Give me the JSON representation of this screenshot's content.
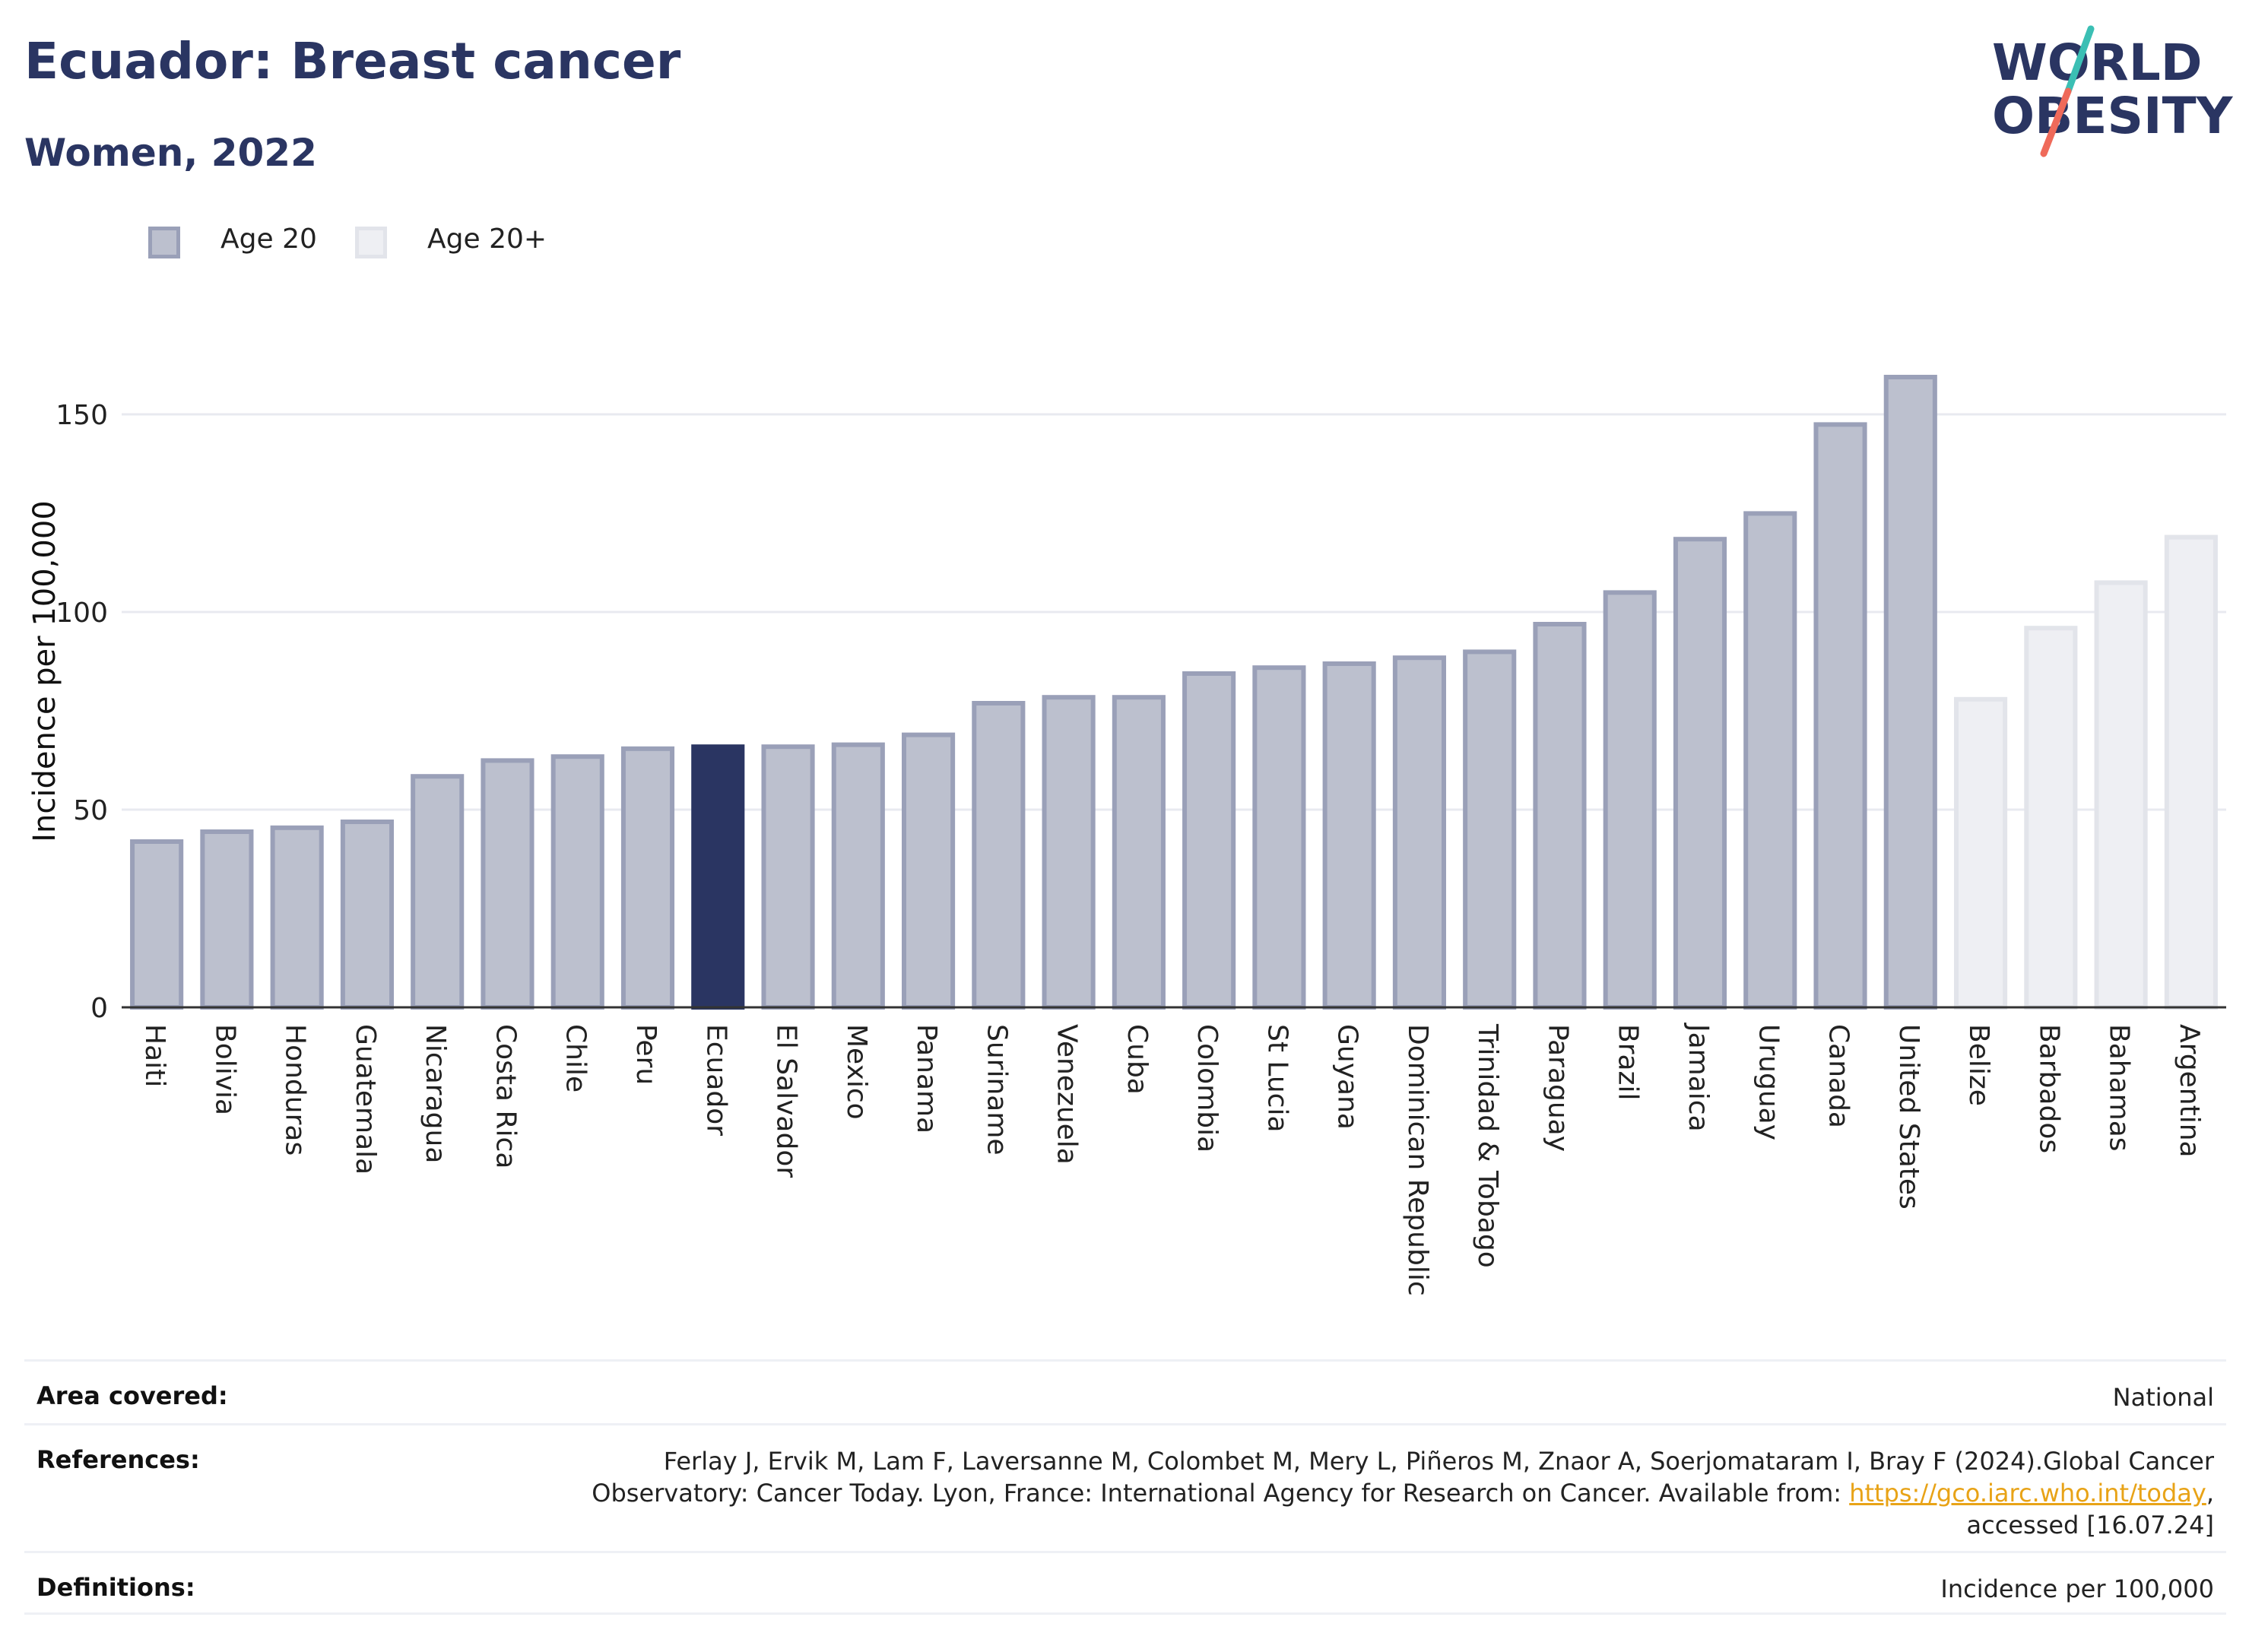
{
  "header": {
    "title": "Ecuador: Breast cancer",
    "subtitle": "Women, 2022"
  },
  "logo": {
    "line1": "WORLD",
    "line2": "OBESITY"
  },
  "colors": {
    "age20_fill": "#bcc0ce",
    "age20_stroke": "#9aa0b8",
    "age20plus_fill": "#eeeff3",
    "age20plus_stroke": "#e2e4ea",
    "highlight": "#2a3562",
    "logo_text": "#2a3562",
    "logo_teal": "#3bbfb4",
    "logo_coral": "#ef6a5a",
    "link": "#e8a317"
  },
  "legend": {
    "items": [
      {
        "label": "Age 20",
        "series": "age20"
      },
      {
        "label": "Age 20+",
        "series": "age20plus"
      }
    ]
  },
  "chart_data": {
    "type": "bar",
    "ylabel": "Incidence per 100,000",
    "xlabel": "",
    "ylim": [
      0,
      175
    ],
    "yticks": [
      0,
      50,
      100,
      150
    ],
    "grid": true,
    "legend_position": "top-left",
    "highlight_category": "Ecuador",
    "categories": [
      "Haiti",
      "Bolivia",
      "Honduras",
      "Guatemala",
      "Nicaragua",
      "Costa Rica",
      "Chile",
      "Peru",
      "Ecuador",
      "El Salvador",
      "Mexico",
      "Panama",
      "Suriname",
      "Venezuela",
      "Cuba",
      "Colombia",
      "St Lucia",
      "Guyana",
      "Dominican Republic",
      "Trinidad & Tobago",
      "Paraguay",
      "Brazil",
      "Jamaica",
      "Uruguay",
      "Canada",
      "United States",
      "Belize",
      "Barbados",
      "Bahamas",
      "Argentina"
    ],
    "values": [
      42.5,
      45,
      46,
      47.5,
      59,
      63,
      64,
      66,
      66.5,
      66.5,
      67,
      69.5,
      77.5,
      79,
      79,
      85,
      86.5,
      87.5,
      89,
      90.5,
      97.5,
      105.5,
      119,
      125.5,
      148,
      160,
      78.5,
      96.5,
      108,
      119.5
    ],
    "series_membership": [
      "age20",
      "age20",
      "age20",
      "age20",
      "age20",
      "age20",
      "age20",
      "age20",
      "age20",
      "age20",
      "age20",
      "age20",
      "age20",
      "age20",
      "age20",
      "age20",
      "age20",
      "age20",
      "age20",
      "age20",
      "age20",
      "age20",
      "age20",
      "age20",
      "age20",
      "age20",
      "age20plus",
      "age20plus",
      "age20plus",
      "age20plus"
    ]
  },
  "info": {
    "rows": [
      {
        "label": "Area covered:",
        "value": "National"
      },
      {
        "label": "References:",
        "value_pre": "Ferlay J, Ervik M, Lam F, Laversanne M, Colombet M, Mery L, Piñeros M, Znaor A, Soerjomataram I, Bray F (2024).Global Cancer Observatory: Cancer Today. Lyon, France: International Agency for Research on Cancer. Available from: ",
        "link": "https://gco.iarc.who.int/today",
        "value_post": ", accessed [16.07.24]"
      },
      {
        "label": "Definitions:",
        "value": "Incidence per 100,000"
      }
    ]
  }
}
